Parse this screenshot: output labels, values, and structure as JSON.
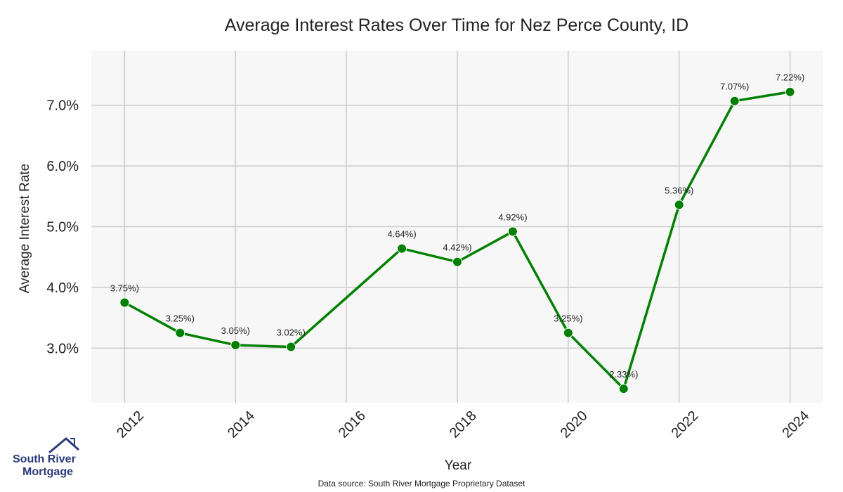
{
  "chart_data": {
    "type": "line",
    "title": "Average Interest Rates Over Time for Nez Perce County, ID",
    "xlabel": "Year",
    "ylabel": "Average Interest Rate",
    "x": [
      2012,
      2013,
      2014,
      2015,
      2017,
      2018,
      2019,
      2020,
      2021,
      2022,
      2023,
      2024
    ],
    "series": [
      {
        "values": [
          3.75,
          3.25,
          3.05,
          3.02,
          4.64,
          4.42,
          4.92,
          3.25,
          2.33,
          5.36,
          7.07,
          7.22
        ]
      }
    ],
    "data_labels": [
      "3.75%)",
      "3.25%)",
      "3.05%)",
      "3.02%)",
      "4.64%)",
      "4.42%)",
      "4.92%)",
      "3.25%)",
      "2.33%)",
      "5.36%)",
      "7.07%)",
      "7.22%)"
    ],
    "xticks": [
      "2012",
      "2014",
      "2016",
      "2018",
      "2020",
      "2022",
      "2024"
    ],
    "yticks": [
      "3.0%",
      "4.0%",
      "5.0%",
      "6.0%",
      "7.0%"
    ],
    "ytick_values": [
      3,
      4,
      5,
      6,
      7
    ],
    "xlim": [
      2011.4,
      2024.6
    ],
    "ylim": [
      2.1,
      7.9
    ],
    "grid": true,
    "colors": {
      "line": "#008000",
      "plot_bg": "#f7f7f7",
      "grid": "#cccccc"
    }
  },
  "source_note": "Data source: South River Mortgage Proprietary Dataset",
  "logo": {
    "line1": "South River",
    "line2": "Mortgage"
  }
}
